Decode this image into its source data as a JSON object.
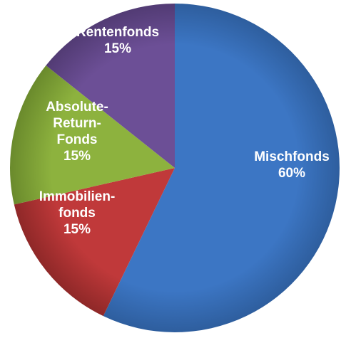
{
  "chart_data": {
    "type": "pie",
    "title": "",
    "series": [
      {
        "values": [
          60,
          15,
          15,
          15
        ],
        "colors": [
          "#3C76C4",
          "#C0393A",
          "#8DB23E",
          "#6C4F96"
        ]
      }
    ],
    "slices": [
      {
        "name": "Mischfonds",
        "value": 60,
        "label_lines": [
          "Mischfonds",
          "60%"
        ],
        "color": "#3C76C4",
        "shade": "#2E5E9E"
      },
      {
        "name": "Immobilienfonds",
        "value": 15,
        "label_lines": [
          "Immobilien-",
          "fonds",
          "15%"
        ],
        "color": "#C0393A",
        "shade": "#8F2828"
      },
      {
        "name": "Absolute-Return-Fonds",
        "value": 15,
        "label_lines": [
          "Absolute-",
          "Return-",
          "Fonds",
          "15%"
        ],
        "color": "#8DB23E",
        "shade": "#6A8A2C"
      },
      {
        "name": "Rentenfonds",
        "value": 15,
        "label_lines": [
          "Rentenfonds",
          "15%"
        ],
        "color": "#6C4F96",
        "shade": "#523B74"
      }
    ],
    "start_angle_deg": 0,
    "direction": "clockwise",
    "legend": "none"
  }
}
